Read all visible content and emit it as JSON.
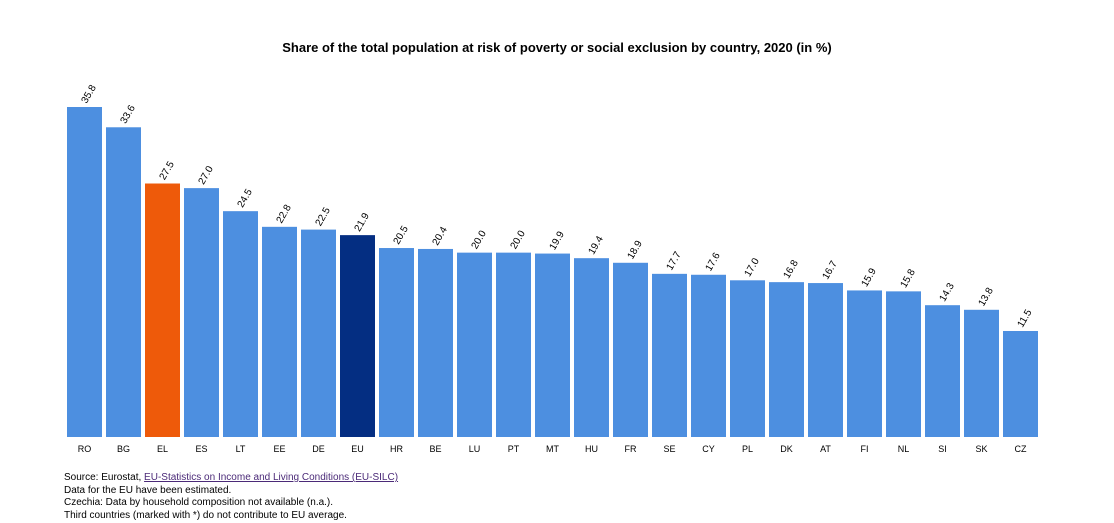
{
  "chart_data": {
    "type": "bar",
    "title": "Share of the total population at risk of poverty or social exclusion by country, 2020 (in %)",
    "xlabel": "",
    "ylabel": "",
    "ylim": [
      0,
      35.8
    ],
    "grid": false,
    "categories": [
      "RO",
      "BG",
      "EL",
      "ES",
      "LT",
      "EE",
      "DE",
      "EU",
      "HR",
      "BE",
      "LU",
      "PT",
      "MT",
      "HU",
      "FR",
      "SE",
      "CY",
      "PL",
      "DK",
      "AT",
      "FI",
      "NL",
      "SI",
      "SK",
      "CZ"
    ],
    "values": [
      35.8,
      33.6,
      27.5,
      27.0,
      24.5,
      22.8,
      22.5,
      21.9,
      20.5,
      20.4,
      20.0,
      20.0,
      19.9,
      19.4,
      18.9,
      17.7,
      17.6,
      17.0,
      16.8,
      16.7,
      15.9,
      15.8,
      14.3,
      13.8,
      11.5
    ],
    "value_labels": [
      "35.8",
      "33.6",
      "27.5",
      "27.0",
      "24.5",
      "22.8",
      "22.5",
      "21.9",
      "20.5",
      "20.4",
      "20.0",
      "20.0",
      "19.9",
      "19.4",
      "18.9",
      "17.7",
      "17.6",
      "17.0",
      "16.8",
      "16.7",
      "15.9",
      "15.8",
      "14.3",
      "13.8",
      "11.5"
    ],
    "colors": {
      "default": "#4d8fe0",
      "highlight": "#ee5a0a",
      "eu": "#042e82"
    },
    "highlight_category": "EL",
    "eu_category": "EU"
  },
  "footer": {
    "source_prefix": "Source: Eurostat, ",
    "source_link": "EU-Statistics on Income and Living Conditions (EU-SILC)",
    "note1": "Data for the EU have been estimated.",
    "note2": "Czechia: Data by household composition not available (n.a.).",
    "note3": "Third countries (marked with *) do not contribute to EU average."
  }
}
